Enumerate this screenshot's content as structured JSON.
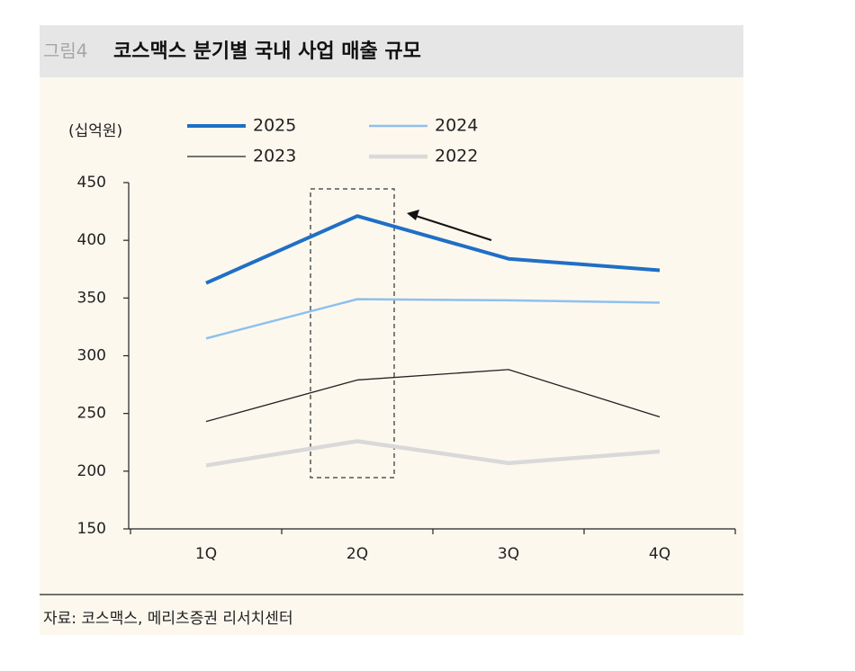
{
  "chart_data": {
    "type": "line",
    "figure_label": "그림4",
    "title": "코스맥스 분기별 국내 사업 매출 규모",
    "y_unit": "(십억원)",
    "source": "자료: 코스맥스, 메리츠증권 리서치센터",
    "categories": [
      "1Q",
      "2Q",
      "3Q",
      "4Q"
    ],
    "series": [
      {
        "name": "2025",
        "color": "#1f6fc5",
        "values": [
          363,
          421,
          384,
          374
        ]
      },
      {
        "name": "2024",
        "color": "#8ec0ef",
        "values": [
          315,
          349,
          348,
          346
        ]
      },
      {
        "name": "2023",
        "color": "#222222",
        "values": [
          243,
          279,
          288,
          247
        ]
      },
      {
        "name": "2022",
        "color": "#d9d9d9",
        "values": [
          205,
          226,
          207,
          217
        ]
      }
    ],
    "ylim": [
      150,
      450
    ],
    "yticks": [
      150,
      200,
      250,
      300,
      350,
      400,
      450
    ],
    "grid": false
  }
}
